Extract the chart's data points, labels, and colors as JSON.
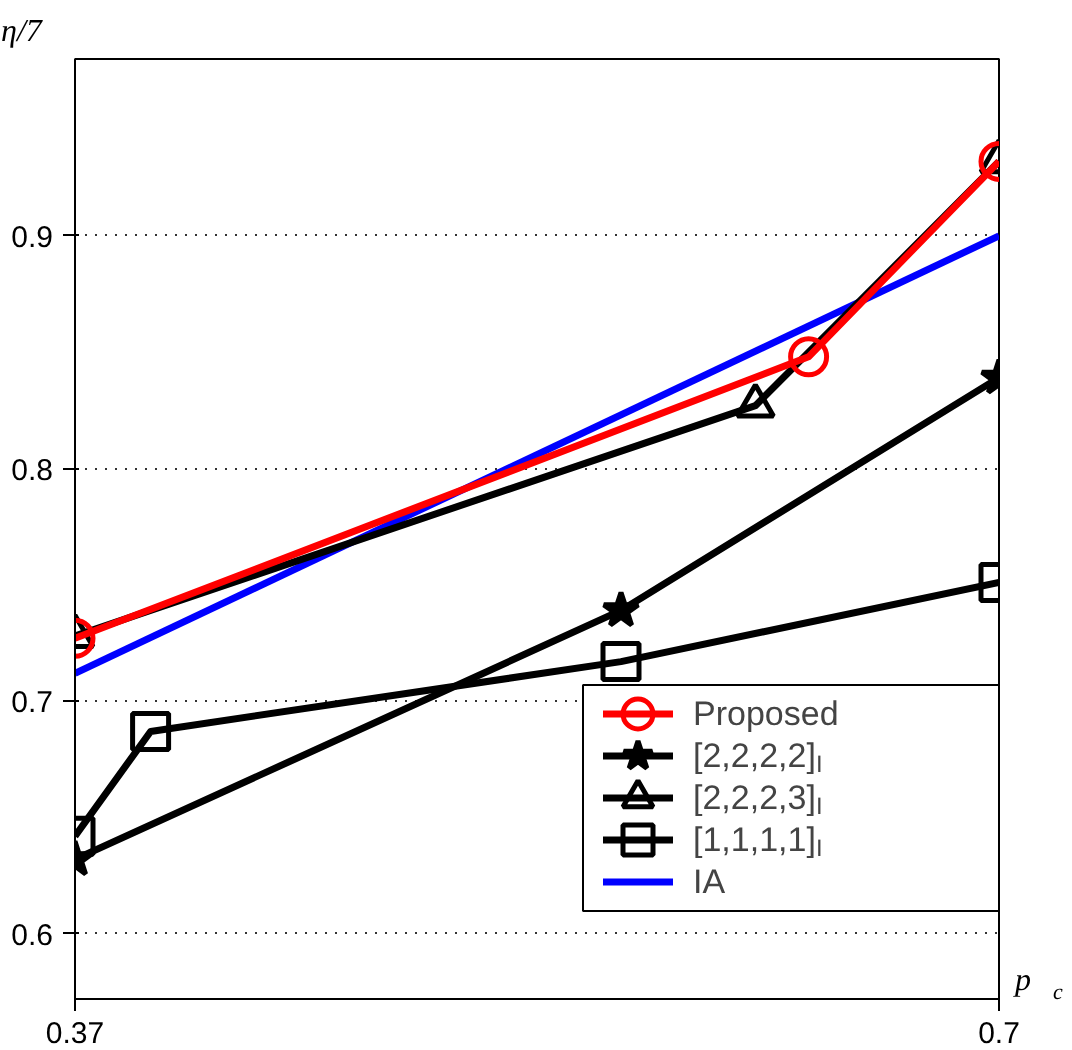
{
  "chart_data": {
    "type": "line",
    "xlabel": "p$_{c}$",
    "ylabel": "η/7",
    "xlim": [
      0.37,
      0.7
    ],
    "ylim": [
      0.572,
      0.976
    ],
    "xticks": [
      0.37,
      0.7
    ],
    "yticks": [
      0.6,
      0.7,
      0.8,
      0.9
    ],
    "grid": "y",
    "legend": "bottom right",
    "line_style": "solid",
    "series": [
      {
        "name": "Proposed",
        "color": "#ff0000",
        "marker": "circle",
        "x": [
          0.37,
          0.632,
          0.7
        ],
        "values": [
          0.727,
          0.848,
          0.932
        ]
      },
      {
        "name": "[2,2,2,2]$_{I}$",
        "color": "#000000",
        "marker": "star",
        "x": [
          0.37,
          0.565,
          0.7
        ],
        "values": [
          0.632,
          0.739,
          0.839
        ]
      },
      {
        "name": "[2,2,2,3]$_{I}$",
        "color": "#000000",
        "marker": "triangle",
        "x": [
          0.37,
          0.613,
          0.7
        ],
        "values": [
          0.728,
          0.827,
          0.932
        ]
      },
      {
        "name": "[1,1,1,1]$_{I}$",
        "color": "#000000",
        "marker": "square",
        "x": [
          0.37,
          0.397,
          0.565,
          0.7
        ],
        "values": [
          0.642,
          0.687,
          0.717,
          0.751
        ]
      },
      {
        "name": "IA",
        "color": "#0000ff",
        "marker": "none",
        "x": [
          0.37,
          0.7
        ],
        "values": [
          0.712,
          0.9
        ]
      }
    ]
  }
}
